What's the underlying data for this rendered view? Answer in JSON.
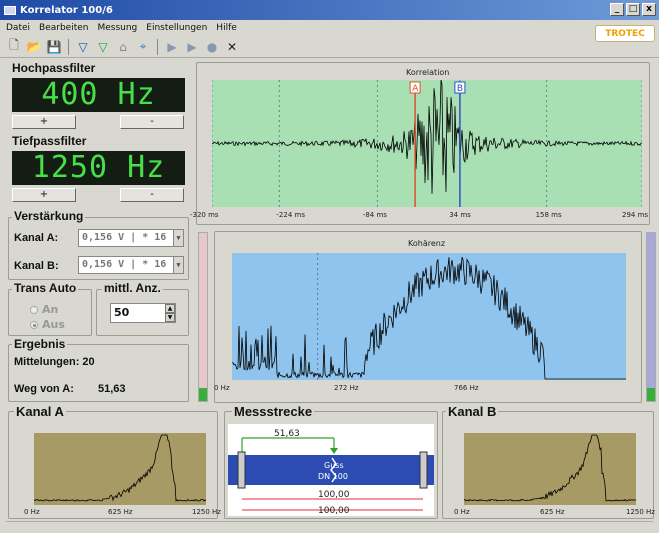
{
  "window": {
    "title": "Korrelator 100/6",
    "btn_min": "_",
    "btn_max": "□",
    "btn_close": "x"
  },
  "menu": [
    "Datei",
    "Bearbeiten",
    "Messung",
    "Einstellungen",
    "Hilfe"
  ],
  "toolbar": {
    "icons": [
      "new-icon",
      "open-icon",
      "save-icon",
      "filter-icon",
      "filter-green-icon",
      "chart-icon",
      "crosshair-icon",
      "play-icon",
      "step-icon",
      "record-icon",
      "close-icon"
    ],
    "glyphs": [
      "🗋",
      "📂",
      "💾",
      "▽",
      "▽",
      "⌂",
      "⌖",
      "▶",
      "▶",
      "●",
      "✕"
    ]
  },
  "logo": "TROTEC",
  "hochpass": {
    "title": "Hochpassfilter",
    "value": "400 Hz",
    "plus": "+",
    "minus": "-"
  },
  "tiefpass": {
    "title": "Tiefpassfilter",
    "value": "1250 Hz",
    "plus": "+",
    "minus": "-"
  },
  "verstaerkung": {
    "title": "Verstärkung",
    "kanal_a_label": "Kanal A:",
    "kanal_a_value": "0,156 V | * 16",
    "kanal_b_label": "Kanal B:",
    "kanal_b_value": "0,156 V | * 16"
  },
  "trans_auto": {
    "title": "Trans Auto",
    "an": "An",
    "aus": "Aus",
    "selected": "Aus"
  },
  "mittl": {
    "title": "mittl. Anz.",
    "value": "50"
  },
  "ergebnis": {
    "title": "Ergebnis",
    "mittelungen": "Mittelungen: 20",
    "weg_label": "Weg von A:",
    "weg_value": "51,63"
  },
  "korrelation": {
    "title": "Korrelation",
    "marker_a": "A",
    "marker_b": "B",
    "colors": {
      "bg": "#a8e0b4",
      "marker_a": "#e05030",
      "marker_b": "#3050c8"
    }
  },
  "kohaerenz": {
    "title": "Kohärenz",
    "colors": {
      "bg": "#8ec4ee"
    }
  },
  "kanal_a": {
    "title": "Kanal A",
    "colors": {
      "bg": "#a89a64"
    }
  },
  "kanal_b": {
    "title": "Kanal B",
    "colors": {
      "bg": "#a89a64"
    }
  },
  "messstrecke": {
    "title": "Messstrecke",
    "distance_a": "51,63",
    "pipe_label_1": "Guss",
    "pipe_label_2": "DN 100",
    "length_1": "100,00",
    "length_2": "100,00",
    "colors": {
      "pipe": "#2c4cb4",
      "arrow": "#30a030",
      "dim": "#e03030"
    }
  },
  "meters": {
    "left_level": 0.08,
    "right_level": 0.08
  },
  "chart_data": [
    {
      "type": "line",
      "title": "Korrelation",
      "x_tick_labels": [
        "-320 ms",
        "-224 ms",
        "-84 ms",
        "34 ms",
        "158 ms",
        "294 ms"
      ],
      "xlim": [
        -320,
        294
      ],
      "markers": {
        "A": -30,
        "B": 34
      },
      "peak_x": 3,
      "note_series": "cross-correlation waveform centered near 0 ms, strong peak between markers"
    },
    {
      "type": "line",
      "title": "Kohärenz",
      "x_tick_labels": [
        "0 Hz",
        "272 Hz",
        "766 Hz"
      ],
      "xlim": [
        0,
        1250
      ],
      "ylim": [
        0,
        1
      ]
    },
    {
      "type": "line",
      "title": "Kanal A",
      "x_tick_labels": [
        "0 Hz",
        "625 Hz",
        "1250 Hz"
      ],
      "xlim": [
        0,
        1250
      ]
    },
    {
      "type": "line",
      "title": "Kanal B",
      "x_tick_labels": [
        "0 Hz",
        "625 Hz",
        "1250 Hz"
      ],
      "xlim": [
        0,
        1250
      ]
    }
  ]
}
